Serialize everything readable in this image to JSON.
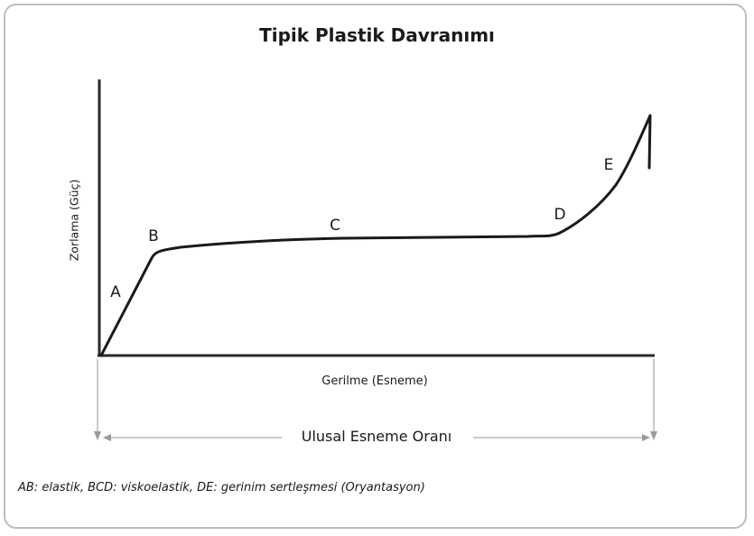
{
  "title": "Tipik Plastik Davranımı",
  "y_axis_label": "Zorlama (Güç)",
  "x_axis_label": "Gerilme (Esneme)",
  "range_label": "Ulusal Esneme Oranı",
  "points": {
    "a": "A",
    "b": "B",
    "c": "C",
    "d": "D",
    "e": "E"
  },
  "caption": "AB: elastik, BCD: viskoelastik, DE: gerinim sertleşmesi (Oryantasyon)",
  "colors": {
    "curve": "#1a1a1a",
    "axis": "#2a2a2a",
    "guide": "#9a9a9a",
    "frame": "#bdbdbd"
  }
}
